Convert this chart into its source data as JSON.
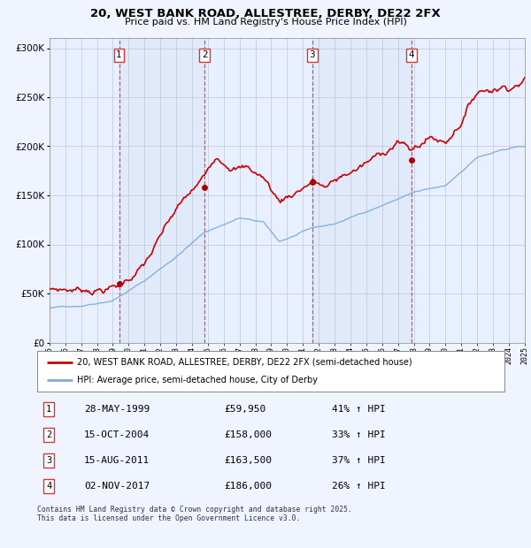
{
  "title": "20, WEST BANK ROAD, ALLESTREE, DERBY, DE22 2FX",
  "subtitle": "Price paid vs. HM Land Registry's House Price Index (HPI)",
  "background_color": "#f0f4ff",
  "plot_bg_color": "#e8f0ff",
  "legend_line1": "20, WEST BANK ROAD, ALLESTREE, DERBY, DE22 2FX (semi-detached house)",
  "legend_line2": "HPI: Average price, semi-detached house, City of Derby",
  "footer": "Contains HM Land Registry data © Crown copyright and database right 2025.\nThis data is licensed under the Open Government Licence v3.0.",
  "sale_points": [
    {
      "num": 1,
      "year": 1999.4,
      "price": 59950,
      "label": "28-MAY-1999",
      "price_str": "£59,950",
      "pct": "41% ↑ HPI"
    },
    {
      "num": 2,
      "year": 2004.8,
      "price": 158000,
      "label": "15-OCT-2004",
      "price_str": "£158,000",
      "pct": "33% ↑ HPI"
    },
    {
      "num": 3,
      "year": 2011.6,
      "price": 163500,
      "label": "15-AUG-2011",
      "price_str": "£163,500",
      "pct": "37% ↑ HPI"
    },
    {
      "num": 4,
      "year": 2017.85,
      "price": 186000,
      "label": "02-NOV-2017",
      "price_str": "£186,000",
      "pct": "26% ↑ HPI"
    }
  ],
  "ylim": [
    0,
    310000
  ],
  "yticks": [
    0,
    50000,
    100000,
    150000,
    200000,
    250000,
    300000
  ],
  "red_color": "#cc0000",
  "blue_color": "#7aacdc",
  "vline_color": "#dd3333",
  "shade_color": "#dde8f8",
  "grid_color": "#bbbbcc",
  "xlim_start": 1995,
  "xlim_end": 2025
}
